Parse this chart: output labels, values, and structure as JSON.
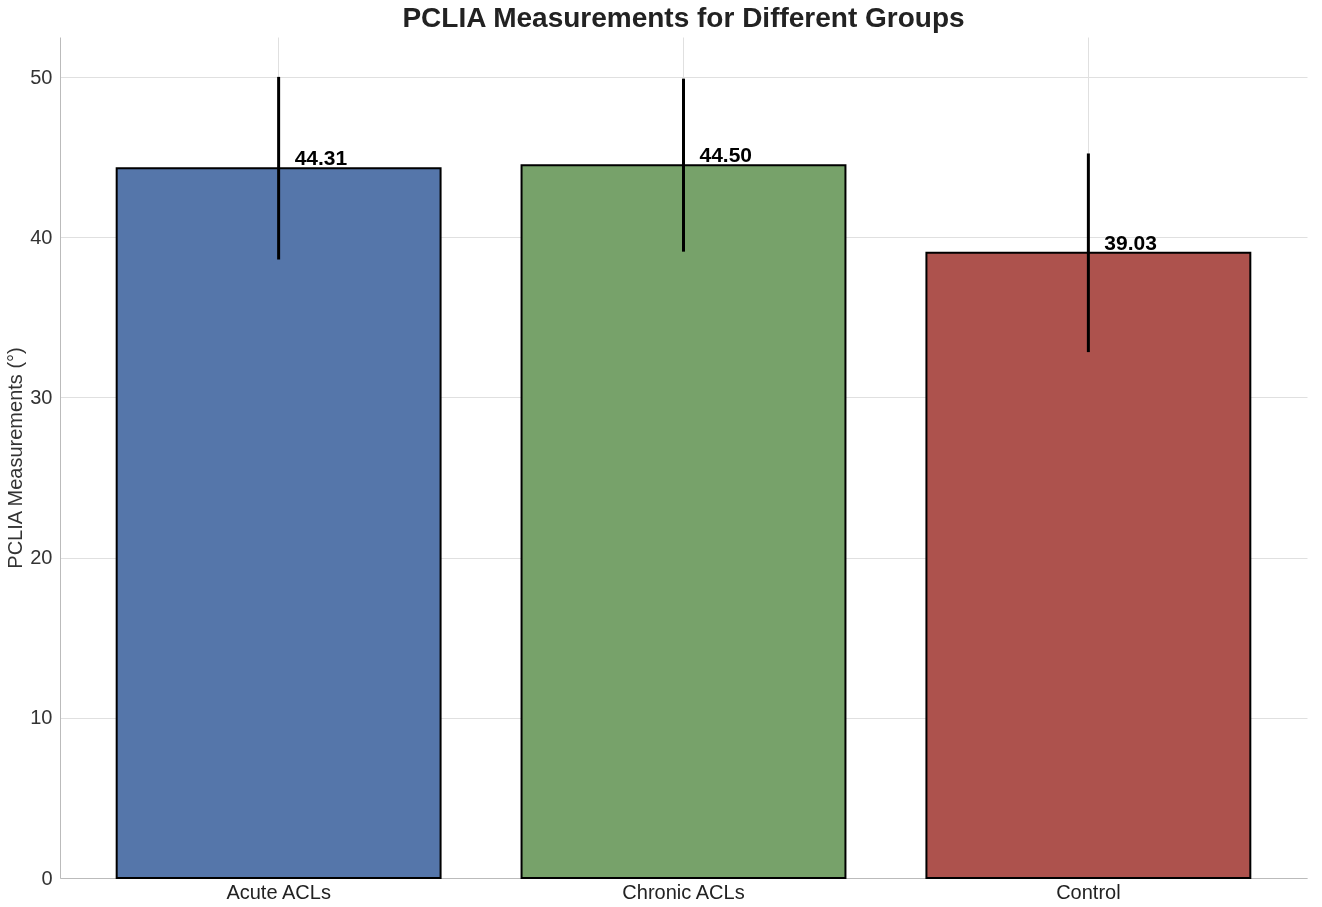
{
  "chart_data": {
    "type": "bar",
    "title": "PCLIA Measurements for Different Groups",
    "ylabel": "PCLIA Measurements (°)",
    "categories": [
      "Acute ACLs",
      "Chronic ACLs",
      "Control"
    ],
    "values": [
      44.31,
      44.5,
      39.03
    ],
    "colors": [
      "#5576aa",
      "#77a26a",
      "#ad524d"
    ],
    "errors": [
      5.7,
      5.4,
      6.2
    ],
    "value_labels": [
      "44.31",
      "44.50",
      "39.03"
    ],
    "ylim": [
      0,
      52.5
    ],
    "yticks": [
      0,
      10,
      20,
      30,
      40,
      50
    ],
    "grid": true
  }
}
